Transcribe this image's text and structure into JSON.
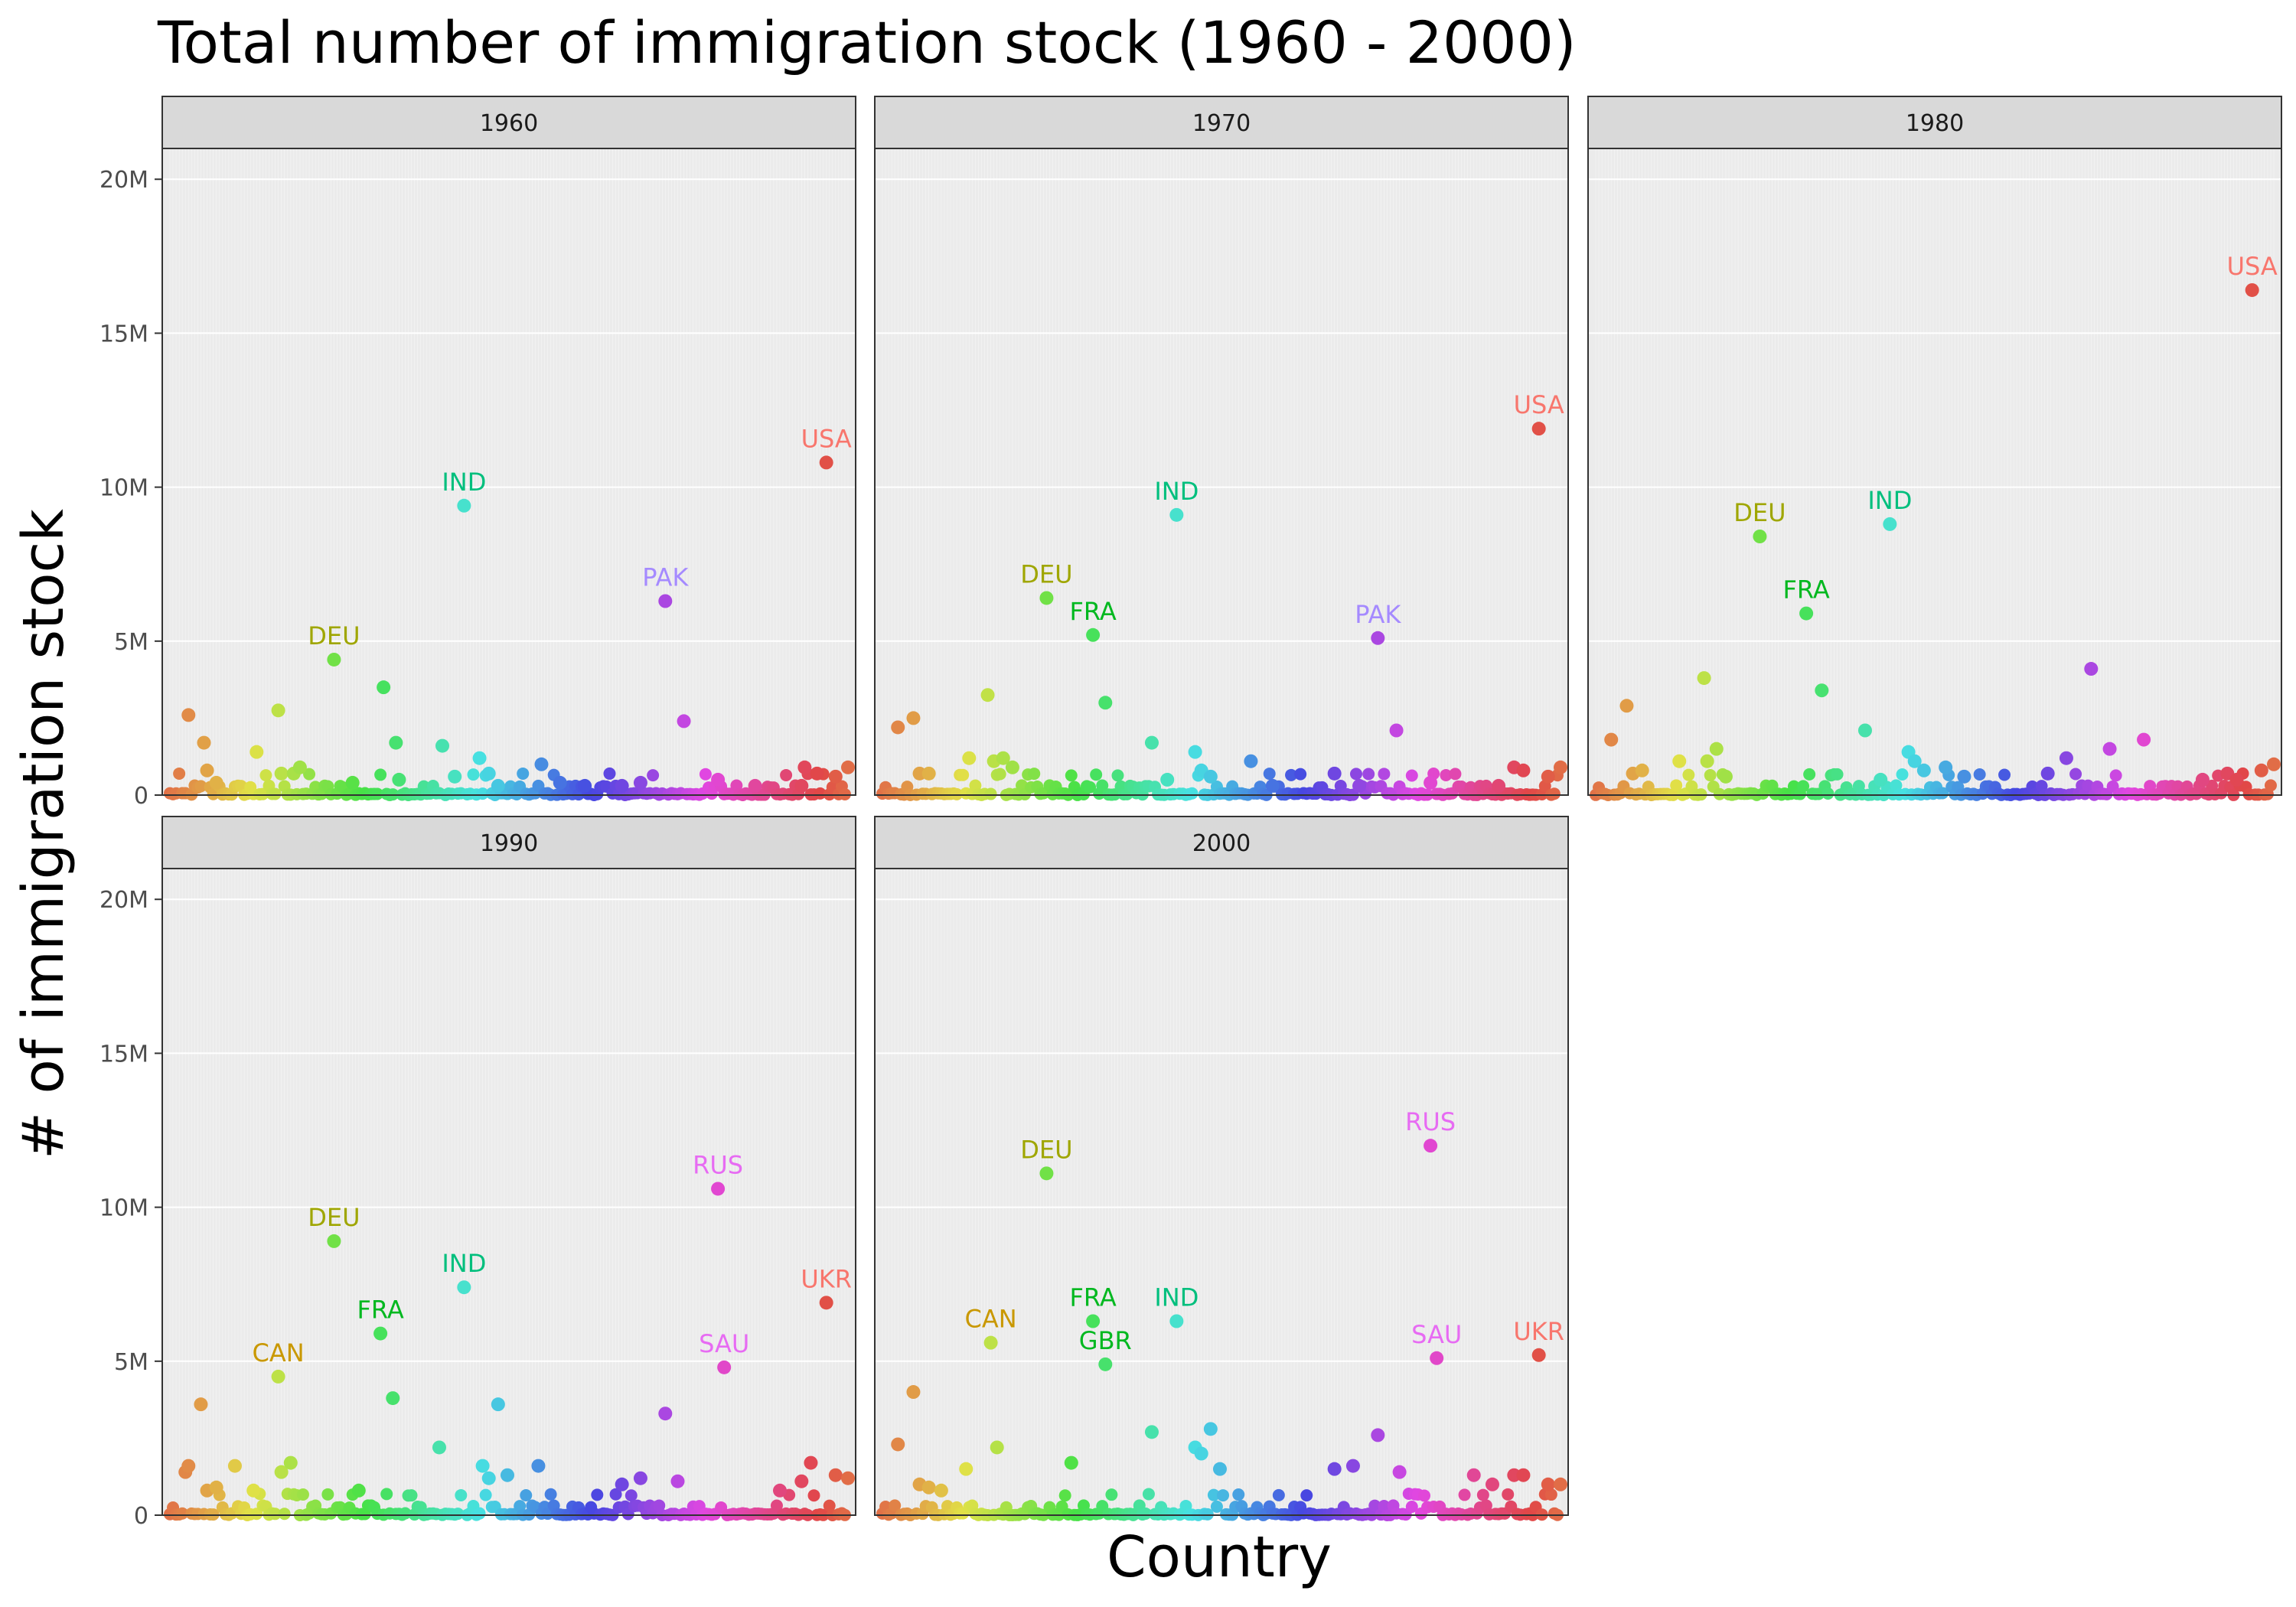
{
  "chart_data": {
    "type": "scatter",
    "title": "Total number of immigration stock (1960 - 2000)",
    "xlabel": "Country",
    "ylabel": "# of immigration stock",
    "ylim": [
      0,
      21000000
    ],
    "y_ticks": [
      {
        "value": 0,
        "label": "0"
      },
      {
        "value": 5000000,
        "label": "5M"
      },
      {
        "value": 10000000,
        "label": "10M"
      },
      {
        "value": 15000000,
        "label": "15M"
      },
      {
        "value": 20000000,
        "label": "20M"
      }
    ],
    "x_tick_labels_shown": false,
    "grid": true,
    "layout": "facet-wrap 3 columns",
    "n_countries": 220,
    "panels": [
      {
        "name": "1960",
        "labels": [
          {
            "text": "USA",
            "x": 213,
            "y": 10800000,
            "color": "#F8766D"
          },
          {
            "text": "IND",
            "x": 96,
            "y": 9400000,
            "color": "#00BF7D"
          },
          {
            "text": "PAK",
            "x": 161,
            "y": 6300000,
            "color": "#A58AFF"
          },
          {
            "text": "DEU",
            "x": 54,
            "y": 4400000,
            "color": "#9FA600"
          }
        ],
        "points": [
          [
            7,
            2600000
          ],
          [
            12,
            1700000
          ],
          [
            13,
            800000
          ],
          [
            16,
            400000
          ],
          [
            29,
            1400000
          ],
          [
            36,
            2750000
          ],
          [
            37,
            700000
          ],
          [
            41,
            700000
          ],
          [
            43,
            900000
          ],
          [
            54,
            4400000
          ],
          [
            60,
            400000
          ],
          [
            70,
            3500000
          ],
          [
            74,
            1700000
          ],
          [
            75,
            500000
          ],
          [
            89,
            1600000
          ],
          [
            93,
            600000
          ],
          [
            96,
            9400000
          ],
          [
            101,
            1200000
          ],
          [
            104,
            700000
          ],
          [
            107,
            300000
          ],
          [
            121,
            1000000
          ],
          [
            127,
            400000
          ],
          [
            135,
            300000
          ],
          [
            147,
            300000
          ],
          [
            153,
            400000
          ],
          [
            161,
            6300000
          ],
          [
            167,
            2400000
          ],
          [
            178,
            500000
          ],
          [
            190,
            300000
          ],
          [
            205,
            300000
          ],
          [
            206,
            900000
          ],
          [
            210,
            700000
          ],
          [
            213,
            10800000
          ],
          [
            216,
            600000
          ],
          [
            220,
            900000
          ]
        ]
      },
      {
        "name": "1970",
        "labels": [
          {
            "text": "USA",
            "x": 213,
            "y": 11900000,
            "color": "#F8766D"
          },
          {
            "text": "IND",
            "x": 96,
            "y": 9100000,
            "color": "#00BF7D"
          },
          {
            "text": "DEU",
            "x": 54,
            "y": 6400000,
            "color": "#9FA600"
          },
          {
            "text": "FRA",
            "x": 69,
            "y": 5200000,
            "color": "#00B81F"
          },
          {
            "text": "PAK",
            "x": 161,
            "y": 5100000,
            "color": "#A58AFF"
          }
        ],
        "points": [
          [
            6,
            2200000
          ],
          [
            11,
            2500000
          ],
          [
            13,
            700000
          ],
          [
            16,
            700000
          ],
          [
            29,
            1200000
          ],
          [
            35,
            3250000
          ],
          [
            37,
            1100000
          ],
          [
            40,
            1200000
          ],
          [
            43,
            900000
          ],
          [
            54,
            6400000
          ],
          [
            69,
            5200000
          ],
          [
            73,
            3000000
          ],
          [
            88,
            1700000
          ],
          [
            93,
            500000
          ],
          [
            96,
            9100000
          ],
          [
            102,
            1400000
          ],
          [
            104,
            800000
          ],
          [
            107,
            600000
          ],
          [
            120,
            1100000
          ],
          [
            127,
            300000
          ],
          [
            147,
            700000
          ],
          [
            155,
            300000
          ],
          [
            161,
            5100000
          ],
          [
            167,
            2100000
          ],
          [
            178,
            400000
          ],
          [
            200,
            300000
          ],
          [
            205,
            900000
          ],
          [
            208,
            800000
          ],
          [
            213,
            11900000
          ],
          [
            216,
            600000
          ],
          [
            220,
            900000
          ]
        ]
      },
      {
        "name": "1980",
        "labels": [
          {
            "text": "USA",
            "x": 213,
            "y": 16400000,
            "color": "#F8766D"
          },
          {
            "text": "IND",
            "x": 96,
            "y": 8800000,
            "color": "#00BF7D"
          },
          {
            "text": "DEU",
            "x": 54,
            "y": 8400000,
            "color": "#9FA600"
          },
          {
            "text": "FRA",
            "x": 69,
            "y": 5900000,
            "color": "#00B81F"
          }
        ],
        "points": [
          [
            6,
            1800000
          ],
          [
            11,
            2900000
          ],
          [
            13,
            700000
          ],
          [
            16,
            800000
          ],
          [
            28,
            1100000
          ],
          [
            36,
            3800000
          ],
          [
            37,
            1100000
          ],
          [
            40,
            1500000
          ],
          [
            43,
            600000
          ],
          [
            54,
            8400000
          ],
          [
            69,
            5900000
          ],
          [
            74,
            3400000
          ],
          [
            88,
            2100000
          ],
          [
            93,
            500000
          ],
          [
            96,
            8800000
          ],
          [
            102,
            1400000
          ],
          [
            104,
            1100000
          ],
          [
            107,
            800000
          ],
          [
            114,
            900000
          ],
          [
            120,
            600000
          ],
          [
            147,
            700000
          ],
          [
            153,
            1200000
          ],
          [
            161,
            4100000
          ],
          [
            167,
            1500000
          ],
          [
            178,
            1800000
          ],
          [
            197,
            500000
          ],
          [
            205,
            700000
          ],
          [
            208,
            500000
          ],
          [
            213,
            16400000
          ],
          [
            216,
            800000
          ],
          [
            220,
            1000000
          ]
        ]
      },
      {
        "name": "1990",
        "labels": [
          {
            "text": "RUS",
            "x": 178,
            "y": 10600000,
            "color": "#E76BF3"
          },
          {
            "text": "DEU",
            "x": 54,
            "y": 8900000,
            "color": "#9FA600"
          },
          {
            "text": "IND",
            "x": 96,
            "y": 7400000,
            "color": "#00BF7D"
          },
          {
            "text": "UKR",
            "x": 213,
            "y": 6900000,
            "color": "#F8766D"
          },
          {
            "text": "FRA",
            "x": 69,
            "y": 5900000,
            "color": "#00B81F"
          },
          {
            "text": "SAU",
            "x": 180,
            "y": 4800000,
            "color": "#E76BF3"
          },
          {
            "text": "CAN",
            "x": 36,
            "y": 4500000,
            "color": "#C99800"
          }
        ],
        "points": [
          [
            6,
            1400000
          ],
          [
            7,
            1600000
          ],
          [
            11,
            3600000
          ],
          [
            13,
            800000
          ],
          [
            16,
            900000
          ],
          [
            22,
            1600000
          ],
          [
            28,
            800000
          ],
          [
            36,
            4500000
          ],
          [
            37,
            1400000
          ],
          [
            40,
            1700000
          ],
          [
            54,
            8900000
          ],
          [
            62,
            800000
          ],
          [
            69,
            5900000
          ],
          [
            73,
            3800000
          ],
          [
            88,
            2200000
          ],
          [
            96,
            7400000
          ],
          [
            102,
            1600000
          ],
          [
            104,
            1200000
          ],
          [
            107,
            3600000
          ],
          [
            110,
            1300000
          ],
          [
            120,
            1600000
          ],
          [
            147,
            1000000
          ],
          [
            153,
            1200000
          ],
          [
            161,
            3300000
          ],
          [
            165,
            1100000
          ],
          [
            178,
            10600000
          ],
          [
            180,
            4800000
          ],
          [
            198,
            800000
          ],
          [
            205,
            1100000
          ],
          [
            208,
            1700000
          ],
          [
            213,
            6900000
          ],
          [
            216,
            1300000
          ],
          [
            220,
            1200000
          ]
        ]
      },
      {
        "name": "2000",
        "labels": [
          {
            "text": "RUS",
            "x": 178,
            "y": 12000000,
            "color": "#E76BF3"
          },
          {
            "text": "DEU",
            "x": 54,
            "y": 11100000,
            "color": "#9FA600"
          },
          {
            "text": "FRA",
            "x": 69,
            "y": 6300000,
            "color": "#00B81F"
          },
          {
            "text": "IND",
            "x": 96,
            "y": 6300000,
            "color": "#00BF7D"
          },
          {
            "text": "CAN",
            "x": 36,
            "y": 5600000,
            "color": "#C99800"
          },
          {
            "text": "UKR",
            "x": 213,
            "y": 5200000,
            "color": "#F8766D"
          },
          {
            "text": "SAU",
            "x": 180,
            "y": 5100000,
            "color": "#E76BF3"
          },
          {
            "text": "GBR",
            "x": 73,
            "y": 4900000,
            "color": "#00B81F"
          }
        ],
        "points": [
          [
            6,
            2300000
          ],
          [
            11,
            4000000
          ],
          [
            13,
            1000000
          ],
          [
            16,
            900000
          ],
          [
            20,
            800000
          ],
          [
            28,
            1500000
          ],
          [
            36,
            5600000
          ],
          [
            38,
            2200000
          ],
          [
            54,
            11100000
          ],
          [
            62,
            1700000
          ],
          [
            69,
            6300000
          ],
          [
            73,
            4900000
          ],
          [
            88,
            2700000
          ],
          [
            96,
            6300000
          ],
          [
            102,
            2200000
          ],
          [
            104,
            2000000
          ],
          [
            107,
            2800000
          ],
          [
            110,
            1500000
          ],
          [
            147,
            1500000
          ],
          [
            153,
            1600000
          ],
          [
            161,
            2600000
          ],
          [
            168,
            1400000
          ],
          [
            178,
            12000000
          ],
          [
            180,
            5100000
          ],
          [
            192,
            1300000
          ],
          [
            198,
            1000000
          ],
          [
            205,
            1300000
          ],
          [
            208,
            1300000
          ],
          [
            213,
            5200000
          ],
          [
            216,
            1000000
          ],
          [
            220,
            1000000
          ]
        ]
      }
    ]
  }
}
